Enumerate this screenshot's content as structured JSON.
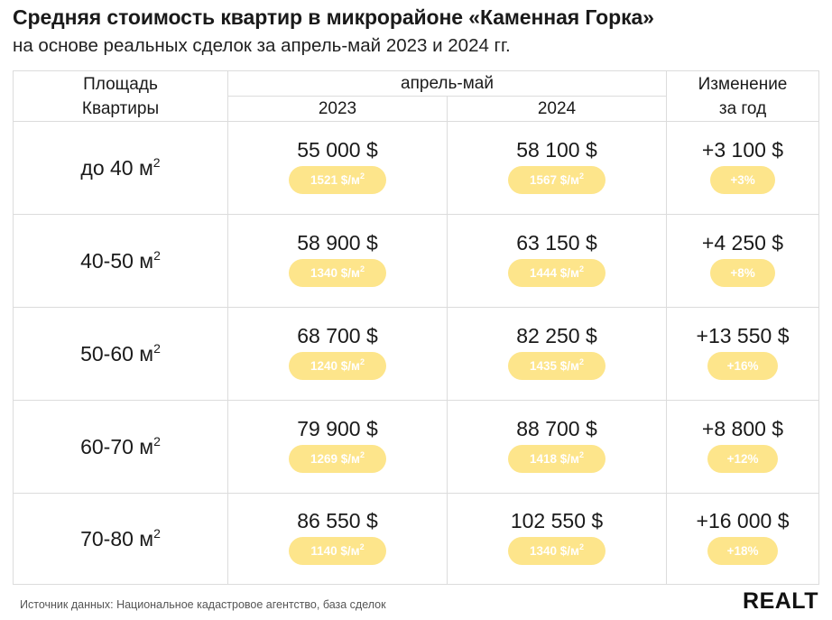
{
  "title": "Средняя стоимость квартир в микрорайоне «Каменная Горка»",
  "subtitle": "на основе реальных сделок за апрель-май 2023 и 2024 гг.",
  "headers": {
    "area_line1": "Площадь",
    "area_line2": "Квартиры",
    "period": "апрель-май",
    "year1": "2023",
    "year2": "2024",
    "change_line1": "Изменение",
    "change_line2": "за год"
  },
  "unit_area": "м",
  "unit_area_sup": "2",
  "chart_data": {
    "type": "table",
    "title": "Средняя стоимость квартир в микрорайоне «Каменная Горка»",
    "columns": [
      "Площадь Квартиры",
      "2023",
      "2024",
      "Изменение за год"
    ],
    "rows": [
      {
        "area": "до 40 м",
        "price_2023": "55 000 $",
        "ppm_2023": "1521 $/м",
        "price_2024": "58 100 $",
        "ppm_2024": "1567 $/м",
        "change": "+3 100 $",
        "change_pct": "+3%"
      },
      {
        "area": "40-50 м",
        "price_2023": "58 900 $",
        "ppm_2023": "1340 $/м",
        "price_2024": "63 150 $",
        "ppm_2024": "1444 $/м",
        "change": "+4 250 $",
        "change_pct": "+8%"
      },
      {
        "area": "50-60 м",
        "price_2023": "68 700 $",
        "ppm_2023": "1240 $/м",
        "price_2024": "82 250 $",
        "ppm_2024": "1435 $/м",
        "change": "+13 550 $",
        "change_pct": "+16%"
      },
      {
        "area": "60-70 м",
        "price_2023": "79 900 $",
        "ppm_2023": "1269 $/м",
        "price_2024": "88 700 $",
        "ppm_2024": "1418 $/м",
        "change": "+8 800 $",
        "change_pct": "+12%"
      },
      {
        "area": "70-80 м",
        "price_2023": "86 550 $",
        "ppm_2023": "1140 $/м",
        "price_2024": "102 550 $",
        "ppm_2024": "1340 $/м",
        "change": "+16 000 $",
        "change_pct": "+18%"
      }
    ]
  },
  "colors": {
    "pill": "#fde58b",
    "grid": "#dcdcdc"
  },
  "footer": "Источник данных: Национальное кадастровое агентство, база сделок",
  "logo": "REALT"
}
